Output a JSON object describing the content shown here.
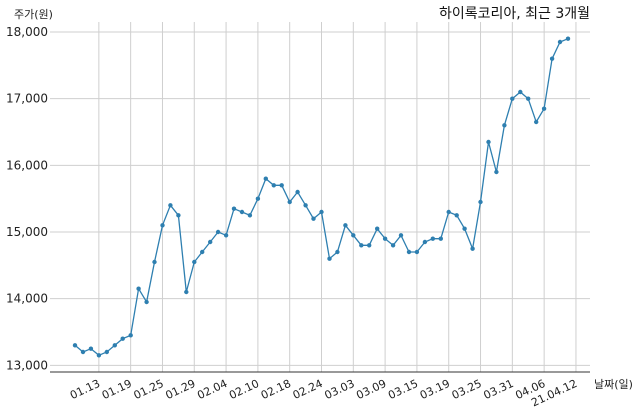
{
  "chart_data": {
    "type": "line",
    "title": "하이록코리아, 최근 3개월",
    "ylabel": "주가(원)",
    "xlabel": "날짜(일)",
    "ylim": [
      12900,
      18150
    ],
    "y_ticks": [
      13000,
      14000,
      15000,
      16000,
      17000,
      18000
    ],
    "y_tick_labels": [
      "13,000",
      "14,000",
      "15,000",
      "16,000",
      "17,000",
      "18,000"
    ],
    "x_tick_labels": [
      "01.13",
      "01.19",
      "01.25",
      "01.29",
      "02.04",
      "02.10",
      "02.18",
      "02.24",
      "03.03",
      "03.09",
      "03.15",
      "03.19",
      "03.25",
      "03.31",
      "04.06",
      "21.04.12"
    ],
    "x_tick_positions": [
      3,
      7,
      11,
      15,
      19,
      23,
      27,
      31,
      35,
      39,
      43,
      47,
      51,
      55,
      59,
      63
    ],
    "grid": true,
    "color": "#2e7fb0",
    "series": [
      {
        "values": [
          13300,
          13200,
          13250,
          13150,
          13200,
          13300,
          13400,
          13450,
          14150,
          13950,
          14550,
          15100,
          15400,
          15250,
          14100,
          14550,
          14700,
          14850,
          15000,
          14950,
          15350,
          15300,
          15250,
          15500,
          15800,
          15700,
          15700,
          15450,
          15600,
          15400,
          15200,
          15300,
          14600,
          14700,
          15100,
          14950,
          14800,
          14800,
          15050,
          14900,
          14800,
          14950,
          14700,
          14700,
          14850,
          14900,
          14900,
          15300,
          15250,
          15050,
          14750,
          15450,
          16350,
          15900,
          16600,
          17000,
          17100,
          17000,
          16650,
          16850,
          17600,
          17850,
          17900
        ]
      }
    ]
  }
}
